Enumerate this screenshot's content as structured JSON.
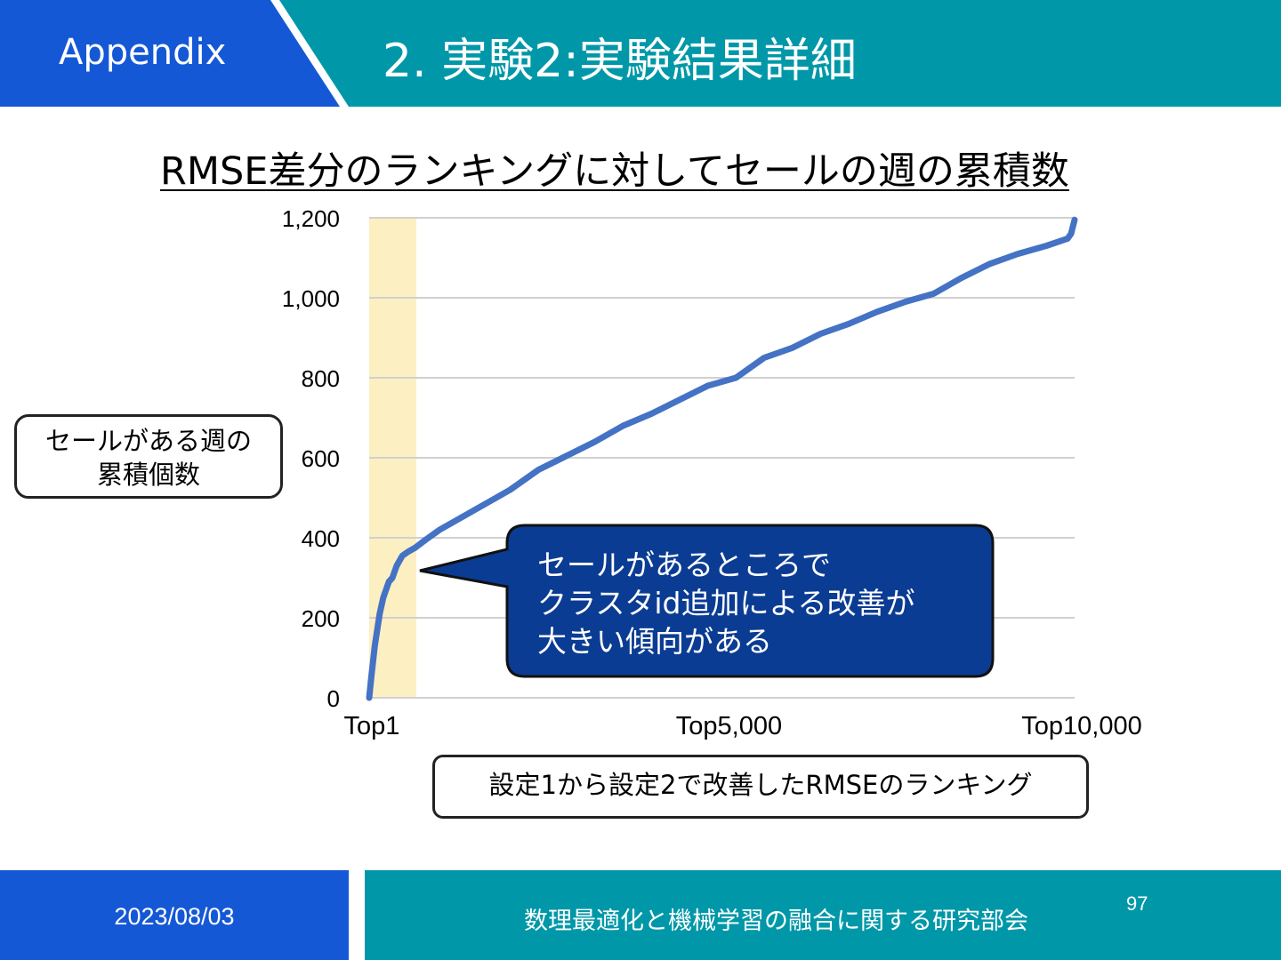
{
  "header": {
    "section_label": "Appendix",
    "title": "2. 実験2:実験結果詳細",
    "colors": {
      "section_bg": "#1558D6",
      "title_bg": "#0098A8"
    }
  },
  "slide_heading": "RMSE差分のランキングに対してセールの週の累積数",
  "ylabel_box": {
    "line1": "セールがある週の",
    "line2": "累積個数"
  },
  "xlabel_box": "設定1から設定2で改善したRMSEのランキング",
  "callout": {
    "line1": "セールがあるところで",
    "line2": "クラスタid追加による改善が",
    "line3": "大きい傾向がある",
    "color": "#0B3C93"
  },
  "chart_data": {
    "type": "line",
    "title": "RMSE差分のランキングに対してセールの週の累積数",
    "xlabel": "設定1から設定2で改善したRMSEのランキング",
    "ylabel": "セールがある週の累積個数",
    "xlim": [
      1,
      10000
    ],
    "ylim": [
      0,
      1200
    ],
    "yticks": [
      0,
      200,
      400,
      600,
      800,
      1000,
      1200
    ],
    "ytick_labels": [
      "0",
      "200",
      "400",
      "600",
      "800",
      "1,000",
      "1,200"
    ],
    "xticks": [
      1,
      5000,
      10000
    ],
    "xtick_labels": [
      "Top1",
      "Top5,000",
      "Top10,000"
    ],
    "grid": true,
    "highlight_band": {
      "x_range": [
        1,
        670
      ],
      "color": "#FCEFC2"
    },
    "series": [
      {
        "color": "#4472C4",
        "x": [
          1,
          30,
          80,
          150,
          200,
          280,
          330,
          390,
          470,
          550,
          650,
          800,
          1000,
          1200,
          1500,
          1800,
          2000,
          2400,
          2800,
          3200,
          3600,
          4000,
          4400,
          4800,
          5200,
          5600,
          6000,
          6400,
          6800,
          7200,
          7600,
          8000,
          8400,
          8800,
          9200,
          9600,
          9900,
          9950,
          10000
        ],
        "y": [
          0,
          50,
          130,
          210,
          250,
          290,
          300,
          330,
          355,
          365,
          375,
          395,
          420,
          440,
          470,
          500,
          520,
          570,
          605,
          640,
          680,
          710,
          745,
          780,
          800,
          850,
          875,
          910,
          935,
          965,
          990,
          1010,
          1050,
          1085,
          1110,
          1130,
          1148,
          1160,
          1195
        ]
      }
    ]
  },
  "footer": {
    "date": "2023/08/03",
    "organization": "数理最適化と機械学習の融合に関する研究部会",
    "page": "97"
  }
}
